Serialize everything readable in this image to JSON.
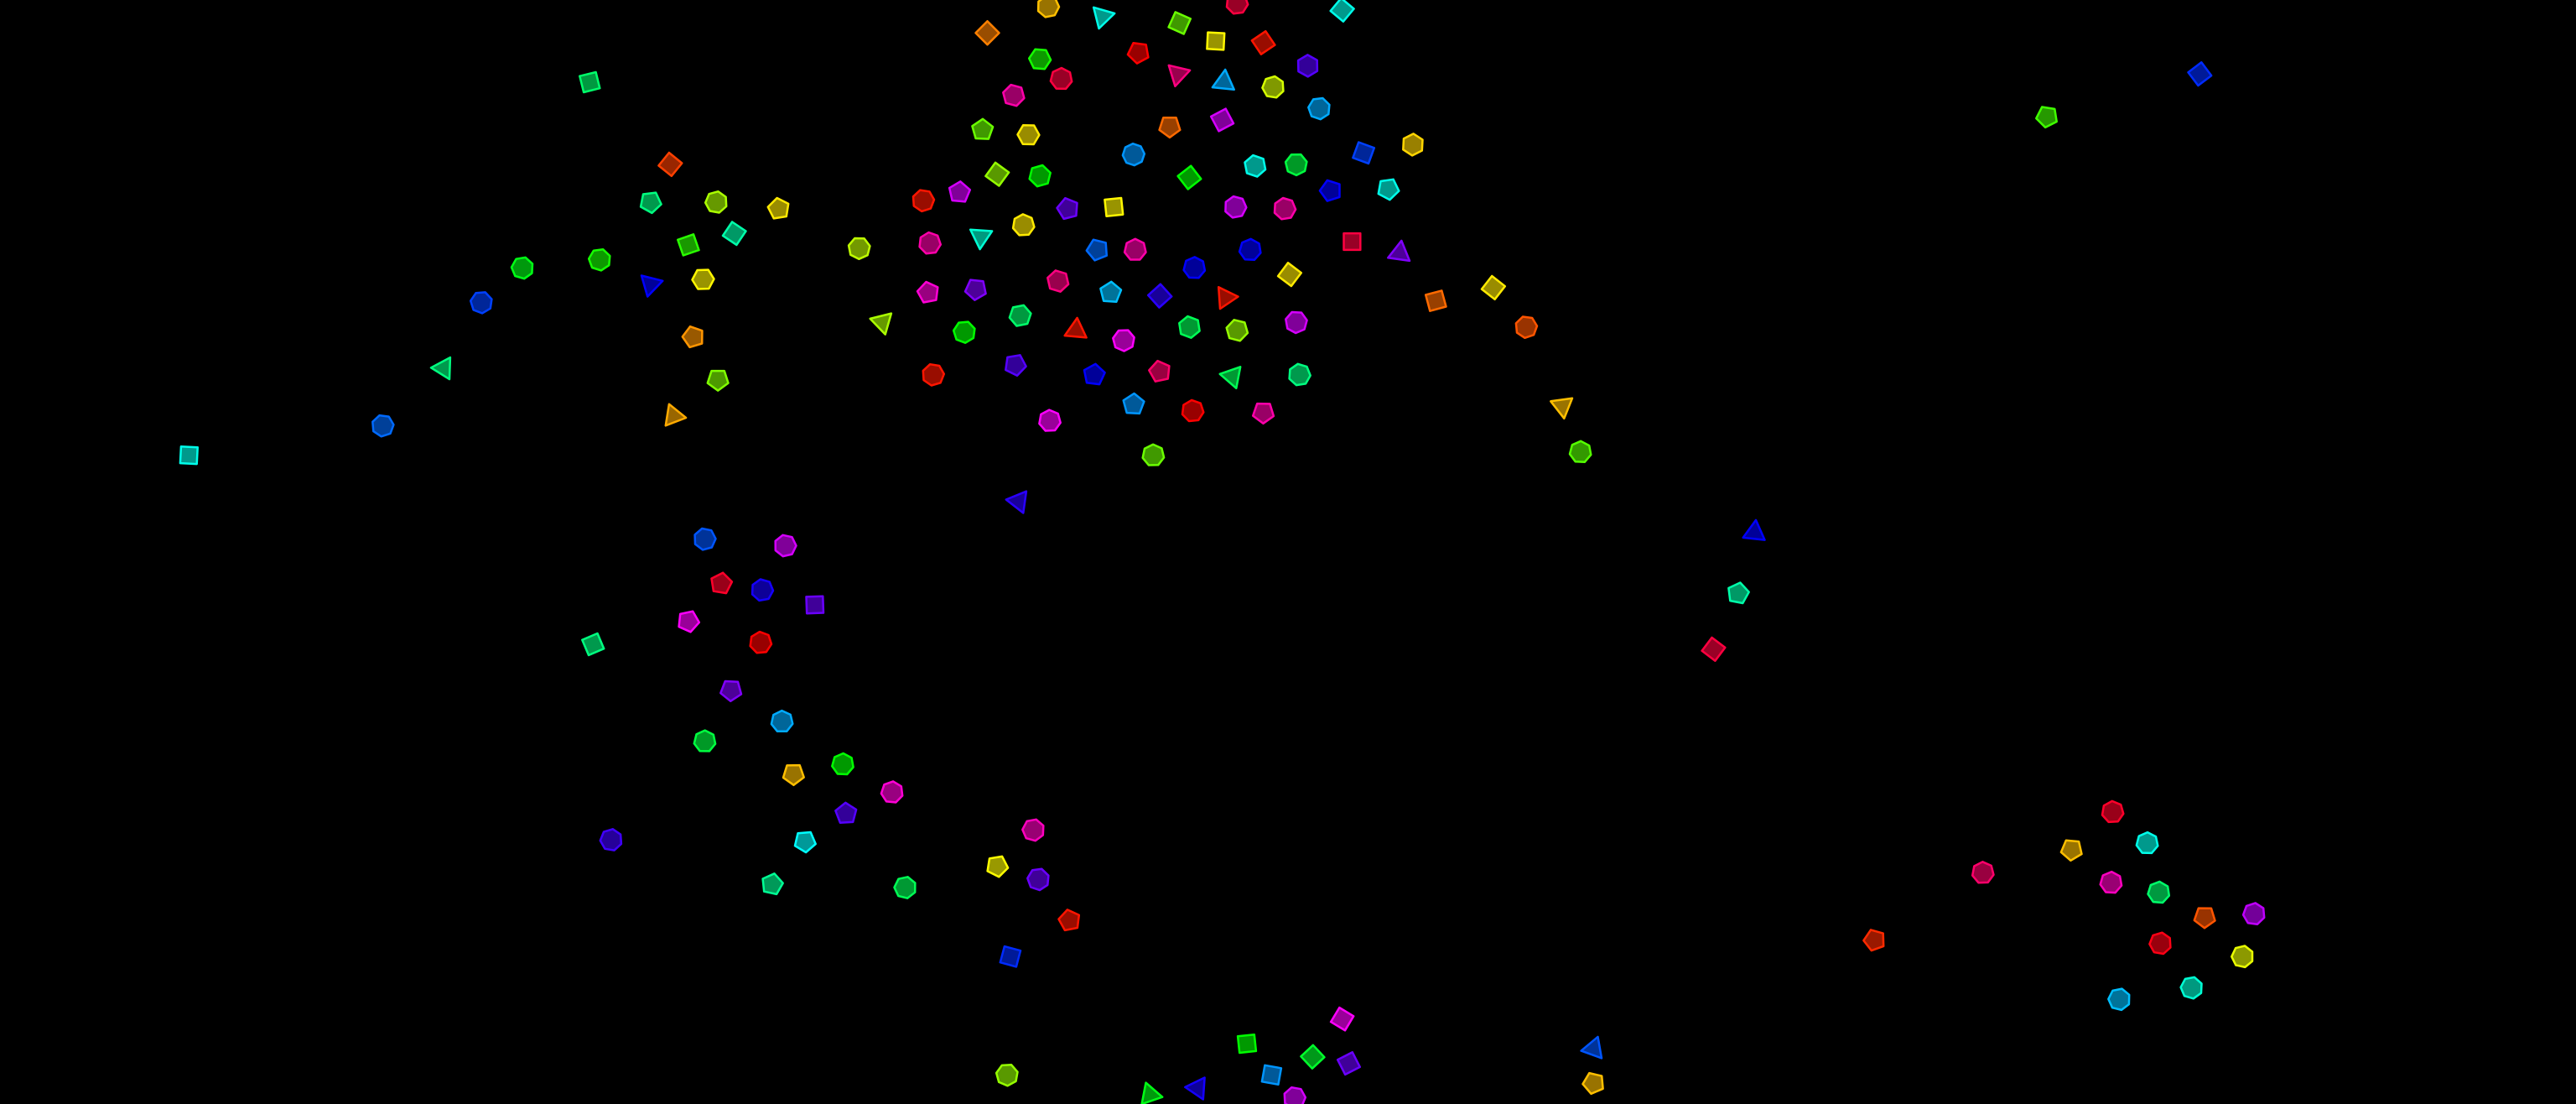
{
  "scene": {
    "background": "#000000",
    "shape_types": [
      "triangle-icon",
      "diamond-icon",
      "pentagon-icon",
      "hexagon-icon",
      "heptagon-icon"
    ],
    "stroke_style": "bright outline, darker fill of same hue"
  }
}
